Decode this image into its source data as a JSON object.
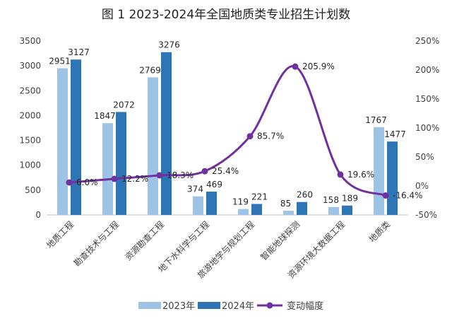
{
  "chart_data": {
    "type": "bar",
    "title": "图 1 2023-2024年全国地质类专业招生计划数",
    "categories": [
      "地质工程",
      "勘查技术与工程",
      "资源勘查工程",
      "地下水科学与工程",
      "旅游地学与规划工程",
      "智能地球探测",
      "资源环境大数据工程",
      "地质类"
    ],
    "series": [
      {
        "name": "2023年",
        "kind": "bar",
        "axis": "left",
        "color": "#9dc3e6",
        "values": [
          2951,
          1847,
          2769,
          374,
          119,
          85,
          158,
          1767
        ]
      },
      {
        "name": "2024年",
        "kind": "bar",
        "axis": "left",
        "color": "#2e75b6",
        "values": [
          3127,
          2072,
          3276,
          469,
          221,
          260,
          189,
          1477
        ]
      },
      {
        "name": "变动幅度",
        "kind": "line",
        "axis": "right",
        "color": "#7030a0",
        "values": [
          6.0,
          12.2,
          18.3,
          25.4,
          85.7,
          205.9,
          19.6,
          -16.4
        ],
        "labels": [
          "6.0%",
          "12.2%",
          "18.3%",
          "25.4%",
          "85.7%",
          "205.9%",
          "19.6%",
          "-16.4%"
        ]
      }
    ],
    "y_left": {
      "min": 0,
      "max": 3500,
      "ticks": [
        "0",
        "500",
        "1000",
        "1500",
        "2000",
        "2500",
        "3000",
        "3500"
      ]
    },
    "y_right": {
      "min": -50,
      "max": 250,
      "ticks": [
        "-50%",
        "0%",
        "50%",
        "100%",
        "150%",
        "200%",
        "250%"
      ]
    },
    "grid": false,
    "legend_position": "bottom"
  }
}
